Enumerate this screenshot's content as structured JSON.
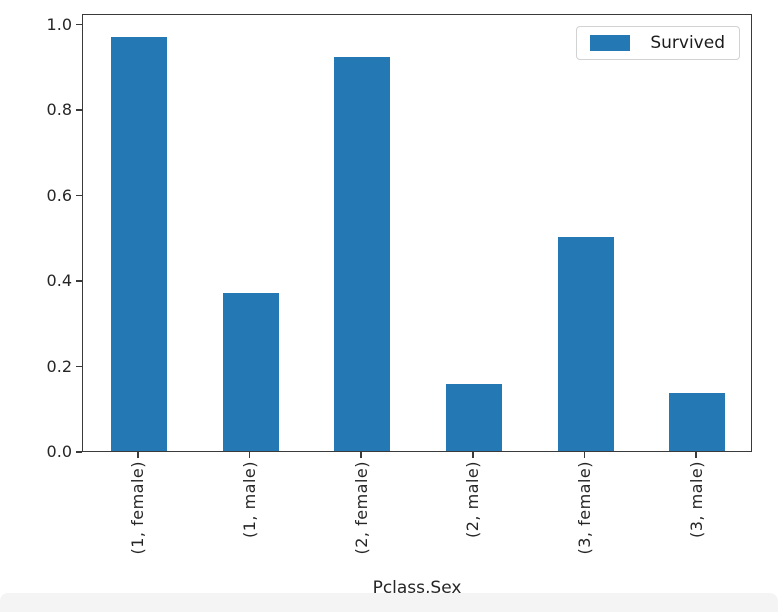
{
  "chart_data": {
    "type": "bar",
    "title": "",
    "xlabel": "Pclass,Sex",
    "ylabel": "",
    "categories": [
      "(1, female)",
      "(1, male)",
      "(2, female)",
      "(2, male)",
      "(3, female)",
      "(3, male)"
    ],
    "values": [
      0.968,
      0.369,
      0.921,
      0.157,
      0.5,
      0.135
    ],
    "series_label": "Survived",
    "bar_color": "#2478b4",
    "ylim": [
      0,
      1.025
    ],
    "yticks": [
      0.0,
      0.2,
      0.4,
      0.6,
      0.8,
      1.0
    ],
    "ytick_labels": [
      "0.0",
      "0.2",
      "0.4",
      "0.6",
      "0.8",
      "1.0"
    ],
    "grid": false,
    "legend_position": "upper right",
    "bar_rel_width": 0.5,
    "x_tick_rotation_deg": 90
  },
  "colors": {
    "spine": "#3a3a3a",
    "text": "#262626",
    "legend_border": "#d2d2d2",
    "background": "#ffffff",
    "bottom_strip": "#f4f4f4"
  }
}
